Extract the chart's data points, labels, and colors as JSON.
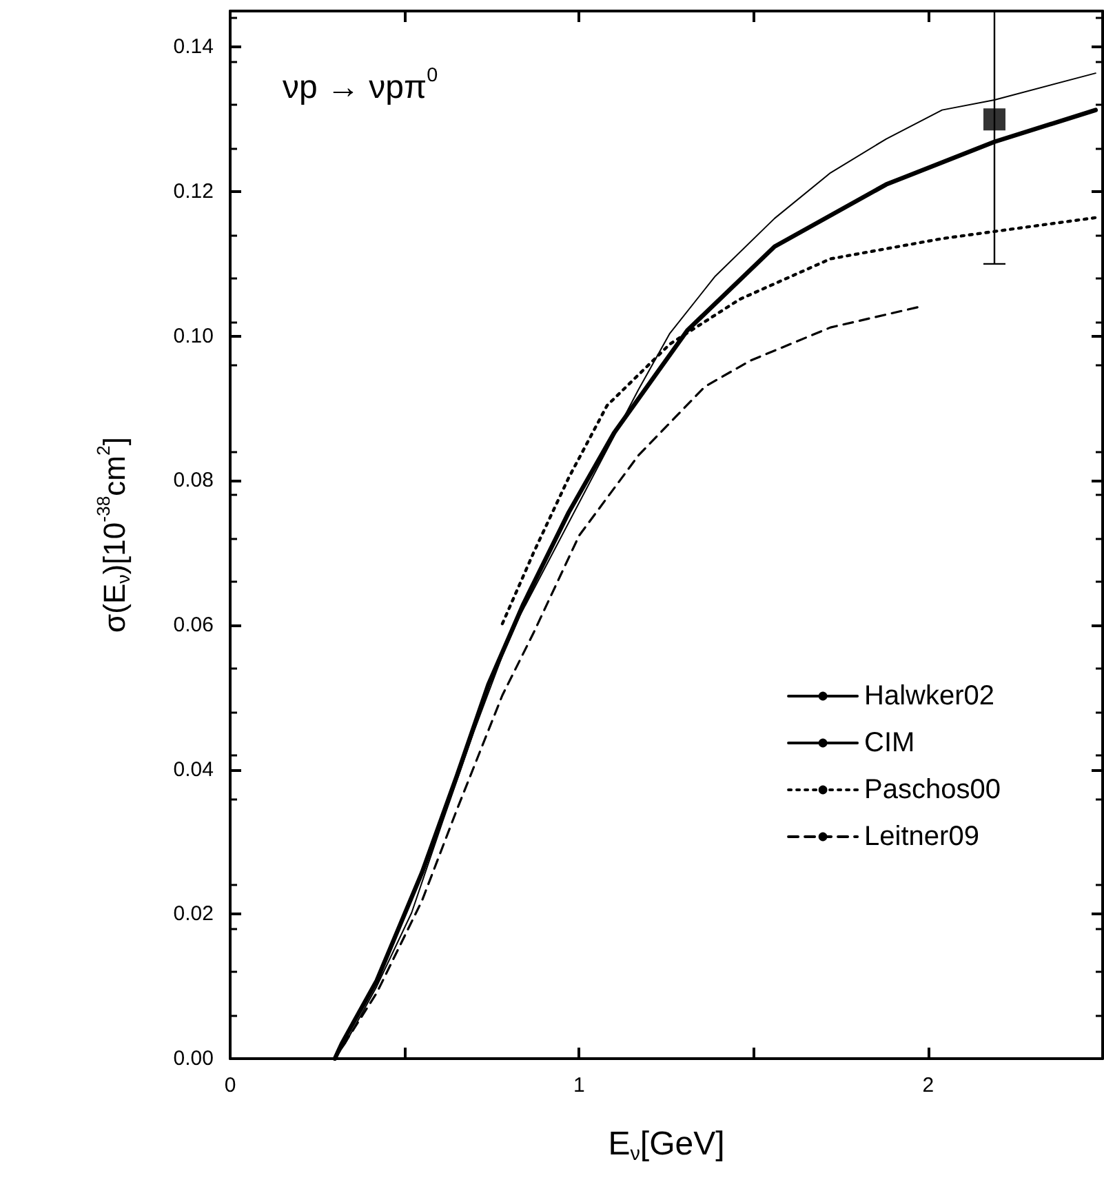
{
  "chart_data": {
    "type": "line",
    "xlabel": "E$_{ν}$[GeV]",
    "ylabel": "σ(E$_{ν}$)[10$^{-38}$cm$^{2}$]",
    "annotations": [
      "νp → νpπ$^{0}$"
    ],
    "xlim": [
      0,
      2.5
    ],
    "xticks": [
      0,
      {
        "value": 0.5,
        "label": null
      },
      1,
      {
        "value": 1.5,
        "label": null
      },
      2
    ],
    "ylim": [
      0,
      0.145
    ],
    "yticks": [
      {
        "value": 0,
        "label": "0.00"
      },
      {
        "value": 0.02,
        "label": "0.02"
      },
      {
        "value": 0.04,
        "label": "0.04"
      },
      {
        "value": 0.06,
        "label": "0.06"
      },
      {
        "value": 0.08,
        "label": "0.08"
      },
      {
        "value": 0.1,
        "label": "0.10"
      },
      {
        "value": 0.12,
        "label": "0.12"
      },
      {
        "value": 0.14,
        "label": "0.14"
      }
    ],
    "grid": false,
    "legend": "right",
    "marker": "none",
    "series": [
      {
        "name": "Halwker02",
        "color": "#000000",
        "line_style": "solid",
        "x": [
          0.3,
          0.33,
          0.42,
          0.52,
          0.61,
          0.7,
          0.78,
          0.83,
          1.17,
          1.26,
          1.39,
          1.56,
          1.72,
          1.88,
          2.04,
          2.19,
          2.48
        ],
        "values": [
          0,
          0.0021,
          0.01,
          0.0202,
          0.033,
          0.0455,
          0.0558,
          0.0613,
          0.0926,
          0.1004,
          0.1083,
          0.1163,
          0.1226,
          0.1273,
          0.1313,
          0.1327,
          0.1364
        ]
      },
      {
        "name": "CIM",
        "color": "#000000",
        "line_style": "solid",
        "x": [
          0.3,
          0.32,
          0.42,
          0.55,
          0.65,
          0.74,
          0.84,
          0.97,
          1.1,
          1.31,
          1.56,
          1.88,
          2.19,
          2.48
        ],
        "values": [
          0,
          0.0021,
          0.0108,
          0.0258,
          0.0392,
          0.0518,
          0.0629,
          0.0756,
          0.0866,
          0.1008,
          0.1124,
          0.121,
          0.1269,
          0.1313
        ]
      },
      {
        "name": "Paschos00",
        "color": "#000000",
        "line_style": "dotted",
        "x": [
          0.78,
          0.87,
          0.97,
          1.08,
          1.26,
          1.46,
          1.72,
          2.04,
          2.48
        ],
        "values": [
          0.0602,
          0.0701,
          0.0804,
          0.0904,
          0.0989,
          0.1051,
          0.1107,
          0.1135,
          0.1164
        ]
      },
      {
        "name": "Leitner09",
        "color": "#000000",
        "line_style": "dashed",
        "x": [
          0.3,
          0.42,
          0.55,
          0.65,
          0.78,
          0.87,
          1.0,
          1.17,
          1.36,
          1.49,
          1.72,
          1.97
        ],
        "values": [
          0,
          0.0091,
          0.0219,
          0.0345,
          0.0503,
          0.059,
          0.0724,
          0.0835,
          0.093,
          0.0966,
          0.1012,
          0.104
        ]
      },
      {
        "type": "scatter",
        "marker": "square",
        "color": "#000000",
        "x": [
          2.19
        ],
        "values": [
          0.13
        ],
        "errors": [
          [
            0.11,
            0.145
          ]
        ]
      }
    ]
  }
}
